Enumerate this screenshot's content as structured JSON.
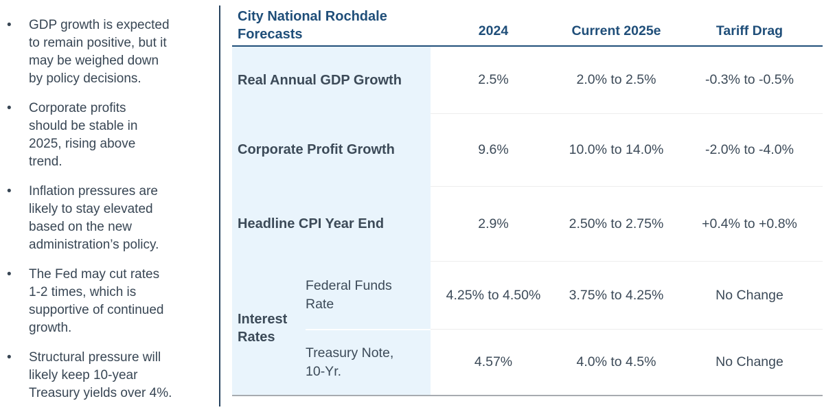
{
  "bullets": {
    "marker": "•",
    "items": [
      {
        "text": "GDP growth is expected\nto remain positive, but it\nmay be weighed down\nby policy decisions."
      },
      {
        "text": "Corporate profits\nshould be stable in\n2025, rising above\ntrend."
      },
      {
        "text": "Inflation pressures are\nlikely to stay elevated\nbased on the new\nadministration’s policy."
      },
      {
        "text": "The Fed may cut rates\n1-2 times, which is\nsupportive of continued\ngrowth."
      },
      {
        "text": "Structural pressure will\nlikely keep 10-year\nTreasury yields over 4%."
      }
    ]
  },
  "table": {
    "title": "City National Rochdale\nForecasts",
    "columns": {
      "y2024": "2024",
      "y2025": "Current 2025e",
      "tariff": "Tariff Drag"
    },
    "rows": [
      {
        "label": "Real Annual GDP Growth",
        "y2024": "2.5%",
        "y2025": "2.0% to 2.5%",
        "tariff": "-0.3% to -0.5%"
      },
      {
        "label": "Corporate Profit Growth",
        "y2024": "9.6%",
        "y2025": "10.0% to 14.0%",
        "tariff": "-2.0% to -4.0%"
      },
      {
        "label": "Headline CPI Year End",
        "y2024": "2.9%",
        "y2025": "2.50% to 2.75%",
        "tariff": "+0.4% to +0.8%"
      }
    ],
    "interest": {
      "group_label": "Interest Rates",
      "rows": [
        {
          "label": "Federal Funds\nRate",
          "y2024": "4.25% to 4.50%",
          "y2025": "3.75% to 4.25%",
          "tariff": "No Change"
        },
        {
          "label": "Treasury Note,\n10-Yr.",
          "y2024": "4.57%",
          "y2025": "4.0% to 4.5%",
          "tariff": "No Change"
        }
      ]
    }
  },
  "colors": {
    "heading_navy": "#1f4e79",
    "body_slate": "#3c4a58",
    "row_label_bg": "#e9f4fc",
    "row_separator": "#ededed",
    "table_bottom_border": "#a7abb0",
    "panel_divider": "#26425e"
  }
}
